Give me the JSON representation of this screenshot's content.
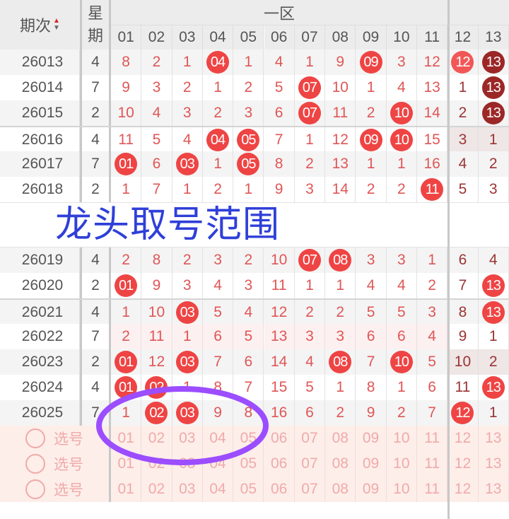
{
  "header": {
    "period_label": "期次",
    "sort_icon": "sort-up-down-icon",
    "week_label": "星期",
    "zone1_label": "一区",
    "columns": [
      "01",
      "02",
      "03",
      "04",
      "05",
      "06",
      "07",
      "08",
      "09",
      "10",
      "11",
      "12",
      "13"
    ]
  },
  "rows": [
    {
      "period": "26013",
      "week": "4",
      "values": [
        "8",
        "2",
        "1",
        "04",
        "1",
        "4",
        "1",
        "9",
        "09",
        "3",
        "12",
        "12",
        "13"
      ],
      "dark": [
        "13"
      ],
      "light": [
        "12"
      ]
    },
    {
      "period": "26014",
      "week": "7",
      "values": [
        "9",
        "3",
        "2",
        "1",
        "2",
        "5",
        "07",
        "10",
        "1",
        "4",
        "13",
        "1",
        "13"
      ],
      "dark": [
        "13"
      ]
    },
    {
      "period": "26015",
      "week": "2",
      "values": [
        "10",
        "4",
        "3",
        "2",
        "3",
        "6",
        "07",
        "11",
        "2",
        "10",
        "14",
        "2",
        "13"
      ],
      "dark": [
        "13"
      ]
    },
    {
      "period": "26016",
      "week": "4",
      "values": [
        "11",
        "5",
        "4",
        "04",
        "05",
        "7",
        "1",
        "12",
        "09",
        "10",
        "15",
        "3",
        "1"
      ]
    },
    {
      "period": "26017",
      "week": "7",
      "values": [
        "01",
        "6",
        "03",
        "1",
        "05",
        "8",
        "2",
        "13",
        "1",
        "1",
        "16",
        "4",
        "2"
      ]
    },
    {
      "period": "26018",
      "week": "2",
      "values": [
        "1",
        "7",
        "1",
        "2",
        "1",
        "9",
        "3",
        "14",
        "2",
        "2",
        "11",
        "5",
        "3"
      ]
    },
    {
      "period": "26019",
      "week": "4",
      "values": [
        "2",
        "8",
        "2",
        "3",
        "2",
        "10",
        "07",
        "08",
        "3",
        "3",
        "1",
        "6",
        "4"
      ]
    },
    {
      "period": "26020",
      "week": "2",
      "values": [
        "01",
        "9",
        "3",
        "4",
        "3",
        "11",
        "1",
        "1",
        "4",
        "4",
        "2",
        "7",
        "13"
      ]
    },
    {
      "period": "26021",
      "week": "4",
      "values": [
        "1",
        "10",
        "03",
        "5",
        "4",
        "12",
        "2",
        "2",
        "5",
        "5",
        "3",
        "8",
        "13"
      ]
    },
    {
      "period": "26022",
      "week": "7",
      "values": [
        "2",
        "11",
        "1",
        "6",
        "5",
        "13",
        "3",
        "3",
        "6",
        "6",
        "4",
        "9",
        "1"
      ]
    },
    {
      "period": "26023",
      "week": "2",
      "values": [
        "01",
        "12",
        "03",
        "7",
        "6",
        "14",
        "4",
        "08",
        "7",
        "10",
        "5",
        "10",
        "2"
      ]
    },
    {
      "period": "26024",
      "week": "4",
      "values": [
        "01",
        "02",
        "1",
        "8",
        "7",
        "15",
        "5",
        "1",
        "8",
        "1",
        "6",
        "11",
        "13"
      ]
    },
    {
      "period": "26025",
      "week": "7",
      "values": [
        "1",
        "02",
        "03",
        "9",
        "8",
        "16",
        "6",
        "2",
        "9",
        "2",
        "7",
        "12",
        "1"
      ]
    }
  ],
  "select_rows": [
    {
      "label": "选号"
    },
    {
      "label": "选号"
    },
    {
      "label": "选号"
    }
  ],
  "annotation": {
    "text": "龙头取号范围",
    "text_color": "#2f3fd8",
    "ellipse_color": "#9b4dff"
  },
  "colors": {
    "ball": "#ef4444",
    "ball_dark": "#9c2727",
    "zone1_text": "#e05656",
    "zone2_text": "#9a3434"
  }
}
